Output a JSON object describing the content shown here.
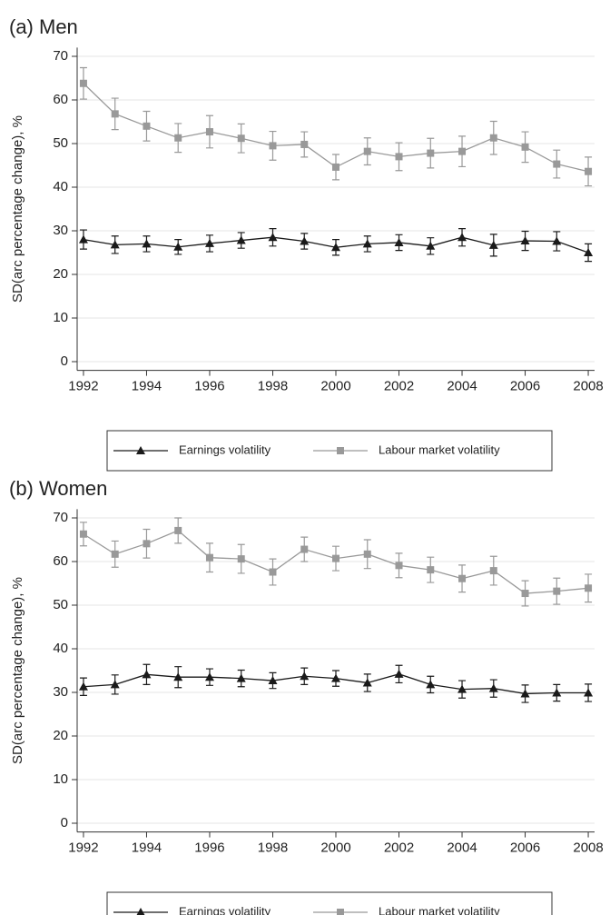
{
  "chart_data": [
    {
      "type": "line",
      "title": "(a) Men",
      "ylabel": "SD(arc percentage change), %",
      "x": [
        1992,
        1993,
        1994,
        1995,
        1996,
        1997,
        1998,
        1999,
        2000,
        2001,
        2002,
        2003,
        2004,
        2005,
        2006,
        2007,
        2008
      ],
      "series": [
        {
          "name": "Earnings volatility",
          "color": "#1a1a1a",
          "marker": "triangle",
          "values": [
            28,
            26.8,
            27,
            26.3,
            27.1,
            27.8,
            28.5,
            27.6,
            26.2,
            27,
            27.3,
            26.5,
            28.5,
            26.7,
            27.7,
            27.6,
            25
          ],
          "errors": [
            2.2,
            2,
            1.8,
            1.7,
            1.9,
            1.8,
            2,
            1.8,
            1.8,
            1.8,
            1.8,
            1.9,
            2,
            2.5,
            2.2,
            2.2,
            2
          ]
        },
        {
          "name": "Labour market volatility",
          "color": "#999999",
          "marker": "square",
          "values": [
            63.8,
            56.8,
            54,
            51.3,
            52.7,
            51.2,
            49.5,
            49.8,
            44.6,
            48.2,
            47,
            47.8,
            48.2,
            51.3,
            49.2,
            45.3,
            43.6
          ],
          "errors": [
            3.6,
            3.6,
            3.4,
            3.3,
            3.7,
            3.3,
            3.3,
            2.9,
            2.9,
            3.1,
            3.2,
            3.4,
            3.5,
            3.8,
            3.5,
            3.2,
            3.3
          ]
        }
      ],
      "xlim": [
        1991.8,
        2008.2
      ],
      "xticks": [
        1992,
        1994,
        1996,
        1998,
        2000,
        2002,
        2004,
        2006,
        2008
      ],
      "ylim": [
        -2,
        72
      ],
      "yticks": [
        0,
        10,
        20,
        30,
        40,
        50,
        60,
        70
      ],
      "grid": true
    },
    {
      "type": "line",
      "title": "(b) Women",
      "ylabel": "SD(arc percentage change), %",
      "x": [
        1992,
        1993,
        1994,
        1995,
        1996,
        1997,
        1998,
        1999,
        2000,
        2001,
        2002,
        2003,
        2004,
        2005,
        2006,
        2007,
        2008
      ],
      "series": [
        {
          "name": "Earnings volatility",
          "color": "#1a1a1a",
          "marker": "triangle",
          "values": [
            31.3,
            31.8,
            34.1,
            33.5,
            33.5,
            33.2,
            32.7,
            33.7,
            33.2,
            32.2,
            34.2,
            31.8,
            30.7,
            30.9,
            29.7,
            29.9,
            29.9
          ],
          "errors": [
            2,
            2.2,
            2.3,
            2.4,
            1.9,
            1.9,
            1.8,
            1.9,
            1.8,
            2,
            2,
            1.9,
            2,
            2,
            2,
            1.9,
            2
          ]
        },
        {
          "name": "Labour market volatility",
          "color": "#999999",
          "marker": "square",
          "values": [
            66.3,
            61.7,
            64.1,
            67.1,
            60.9,
            60.6,
            57.6,
            62.8,
            60.7,
            61.7,
            59.1,
            58.1,
            56.1,
            57.9,
            52.7,
            53.2,
            53.9
          ],
          "errors": [
            2.7,
            3,
            3.3,
            2.9,
            3.3,
            3.3,
            3,
            2.8,
            2.8,
            3.3,
            2.8,
            2.9,
            3.1,
            3.3,
            2.9,
            3,
            3.2
          ]
        }
      ],
      "xlim": [
        1991.8,
        2008.2
      ],
      "xticks": [
        1992,
        1994,
        1996,
        1998,
        2000,
        2002,
        2004,
        2006,
        2008
      ],
      "ylim": [
        -2,
        72
      ],
      "yticks": [
        0,
        10,
        20,
        30,
        40,
        50,
        60,
        70
      ],
      "grid": true
    }
  ]
}
